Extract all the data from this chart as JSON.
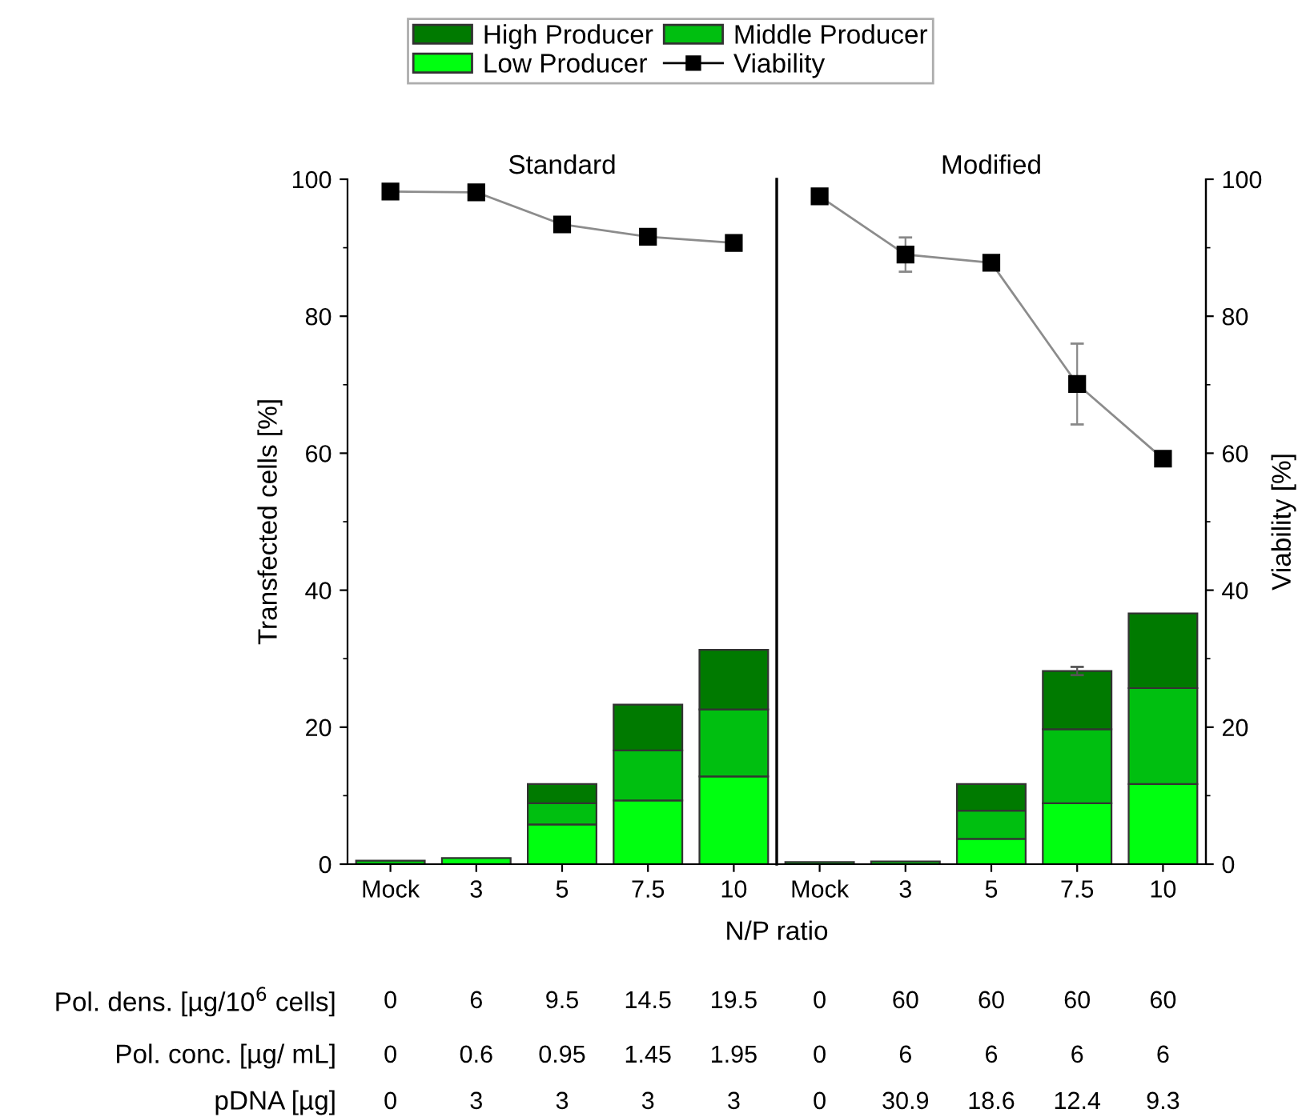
{
  "chart_data": [
    {
      "type": "bar",
      "title": "Standard",
      "stacked": true,
      "xlabel": "N/P ratio",
      "ylabel": "Transfected cells [%]",
      "legend": "top",
      "marker": "square",
      "categories": [
        "Mock",
        "3",
        "5",
        "7.5",
        "10"
      ],
      "ylim": [
        0,
        100
      ],
      "yticks": [
        0,
        20,
        40,
        60,
        80,
        100
      ],
      "series": [
        {
          "name": "Low Producer",
          "color": "#00ff10",
          "values": [
            null,
            0.9,
            5.8,
            9.3,
            12.8
          ]
        },
        {
          "name": "Middle Producer",
          "color": "#00bf10",
          "values": [
            0.5,
            null,
            3.1,
            7.3,
            9.8
          ]
        },
        {
          "name": "High Producer",
          "color": "#007a00",
          "values": [
            null,
            null,
            2.8,
            6.7,
            8.7
          ]
        },
        {
          "name": "Viability",
          "type": "line",
          "color": "#000000",
          "values": [
            98.2,
            98.1,
            93.4,
            91.6,
            90.7
          ]
        }
      ],
      "annotations": [
        "Pol. dens. [µg/10$^{6}$ cells]",
        "Pol. conc. [µg/ mL]",
        "pDNA [µg]",
        "0",
        "6",
        "9.5",
        "14.5",
        "19.5",
        "0",
        "0.6",
        "0.95",
        "1.45",
        "1.95",
        "0",
        "3",
        "3",
        "3",
        "3"
      ]
    },
    {
      "type": "bar",
      "title": "Modified",
      "stacked": true,
      "y2label": "Viability [%]",
      "marker": "square",
      "categories": [
        "Mock",
        "3",
        "5",
        "7.5",
        "10"
      ],
      "y2lim": [
        0,
        100
      ],
      "y2ticks": [
        0,
        20,
        40,
        60,
        80,
        100
      ],
      "series": [
        {
          "color": "#00ff10",
          "axis": "y2",
          "values": [
            null,
            null,
            3.7,
            8.9,
            11.7
          ]
        },
        {
          "color": "#00bf10",
          "axis": "y2",
          "values": [
            0.3,
            0.4,
            4.1,
            10.8,
            14.0
          ]
        },
        {
          "color": "#007a00",
          "axis": "y2",
          "values": [
            null,
            null,
            3.9,
            8.5,
            10.9
          ],
          "errors": [
            null,
            null,
            null,
            0.6,
            null
          ]
        },
        {
          "type": "line",
          "color": "#000000",
          "axis": "y2",
          "values": [
            97.5,
            89.0,
            87.8,
            70.1,
            59.2
          ],
          "errors": [
            null,
            2.5,
            null,
            5.9,
            null
          ]
        }
      ],
      "annotations": [
        "0",
        "60",
        "60",
        "60",
        "60",
        "0",
        "6",
        "6",
        "6",
        "6",
        "0",
        "30.9",
        "18.6",
        "12.4",
        "9.3"
      ]
    }
  ]
}
